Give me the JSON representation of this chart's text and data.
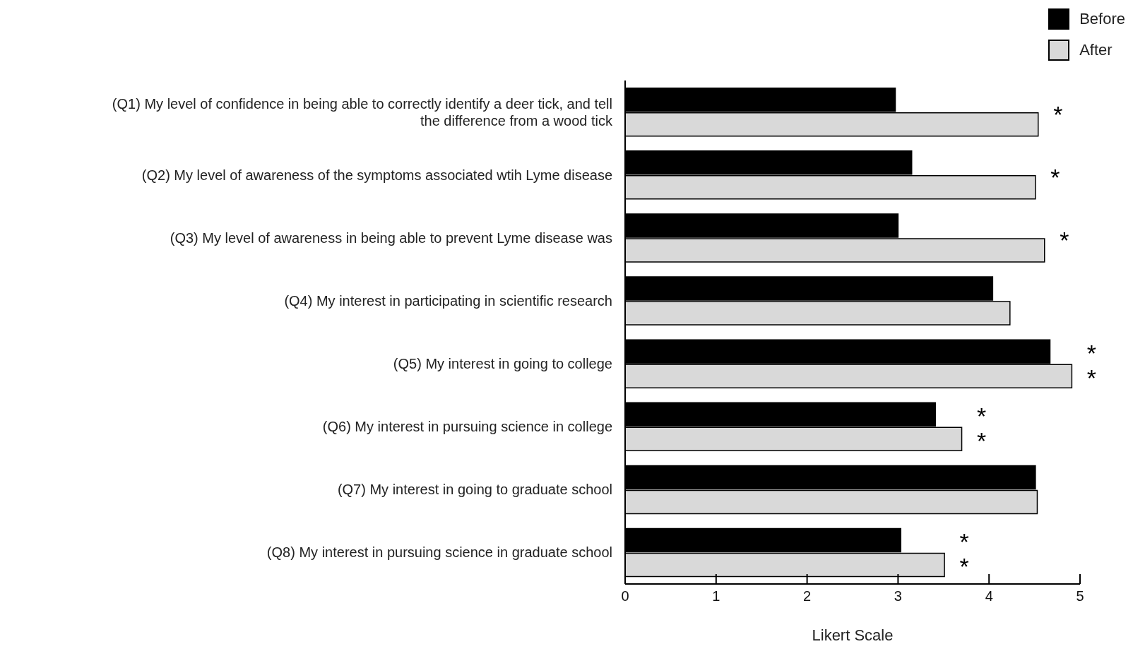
{
  "chart_data": {
    "type": "bar",
    "orientation": "horizontal",
    "xlabel": "Likert Scale",
    "categories": [
      "(Q1) My level of confidence in being able to correctly identify a deer tick, and tell the difference from a wood tick",
      "(Q2) My level of awareness of the symptoms associated wtih Lyme disease",
      "(Q3) My level of awareness in being able to prevent Lyme disease was",
      "(Q4) My interest in participating in scientific research",
      "(Q5) My interest in going to college",
      "(Q6) My interest in pursuing science in college",
      "(Q7) My interest in going to graduate school",
      "(Q8) My interest in pursuing science in graduate school"
    ],
    "series": [
      {
        "name": "Before",
        "color": "#000000",
        "values": [
          2.97,
          3.15,
          3.0,
          4.04,
          4.67,
          3.41,
          4.51,
          3.03
        ]
      },
      {
        "name": "After",
        "color": "#d9d9d9",
        "values": [
          4.54,
          4.51,
          4.61,
          4.23,
          4.91,
          3.7,
          4.53,
          3.51
        ]
      }
    ],
    "xlim": [
      0,
      5
    ],
    "xticks": [
      0,
      1,
      2,
      3,
      4,
      5
    ],
    "grid": false,
    "legend": "top right",
    "annotations": [
      {
        "text": "*",
        "x": 4.54,
        "y": "(Q1) My level of confidence in being able to correctly identify a deer tick, and tell the difference from a wood tick"
      },
      {
        "text": "*",
        "x": 4.51,
        "y": "(Q2) My level of awareness of the symptoms associated wtih Lyme disease"
      },
      {
        "text": "*",
        "x": 4.61,
        "y": "(Q3) My level of awareness in being able to prevent Lyme disease was"
      },
      {
        "text": "*",
        "x": 4.67,
        "y": "(Q5) My interest in going to college"
      },
      {
        "text": "*",
        "x": 4.91,
        "y": "(Q5) My interest in going to college"
      },
      {
        "text": "*",
        "x": 3.41,
        "y": "(Q6) My interest in pursuing science in college"
      },
      {
        "text": "*",
        "x": 3.7,
        "y": "(Q6) My interest in pursuing science in college"
      },
      {
        "text": "*",
        "x": 3.03,
        "y": "(Q8) My interest in pursuing science in graduate school"
      },
      {
        "text": "*",
        "x": 3.51,
        "y": "(Q8) My interest in pursuing science in graduate school"
      }
    ]
  }
}
